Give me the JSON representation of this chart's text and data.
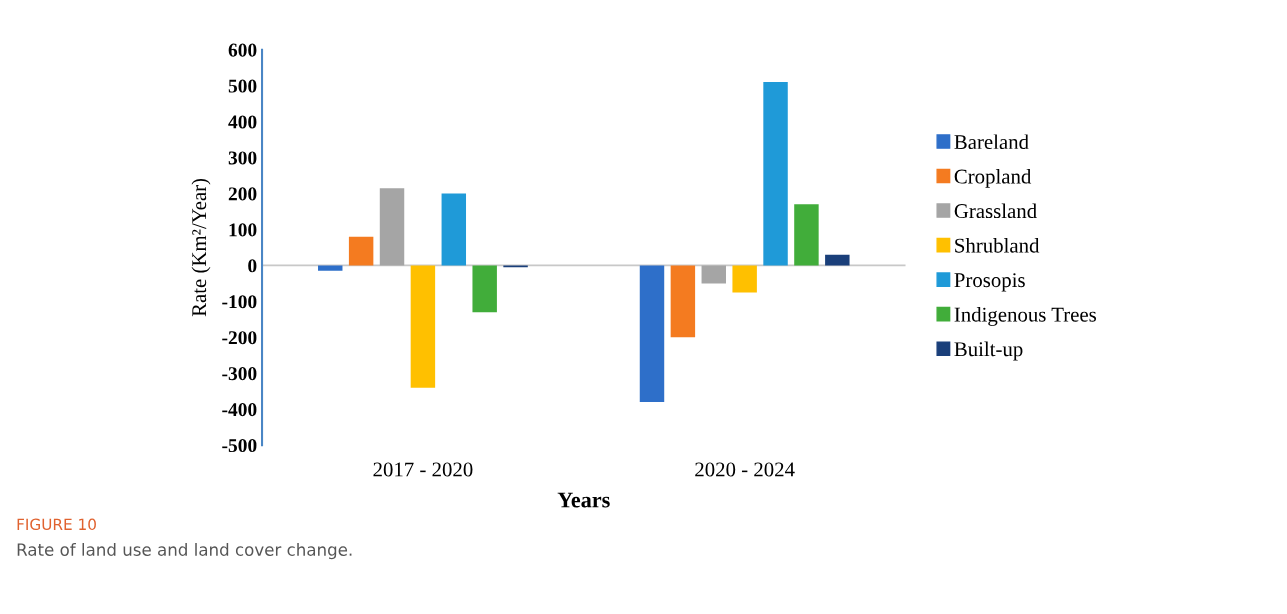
{
  "chart_data": {
    "type": "bar",
    "xlabel": "Years",
    "ylabel": "Rate (Km²/Year)",
    "categories": [
      "2017 - 2020",
      "2020 - 2024"
    ],
    "series": [
      {
        "name": "Bareland",
        "color": "#2e6fc9",
        "values": [
          -15,
          -380
        ]
      },
      {
        "name": "Cropland",
        "color": "#f47b20",
        "values": [
          80,
          -200
        ]
      },
      {
        "name": "Grassland",
        "color": "#a5a5a5",
        "values": [
          215,
          -50
        ]
      },
      {
        "name": "Shrubland",
        "color": "#ffc000",
        "values": [
          -340,
          -75
        ]
      },
      {
        "name": "Prosopis",
        "color": "#1f9ad8",
        "values": [
          200,
          510
        ]
      },
      {
        "name": "Indigenous Trees",
        "color": "#41ad3a",
        "values": [
          -130,
          170
        ]
      },
      {
        "name": "Built-up",
        "color": "#1a3f7a",
        "values": [
          -5,
          30
        ]
      }
    ],
    "ylim": [
      -500,
      600
    ],
    "yticks": [
      -500,
      -400,
      -300,
      -200,
      -100,
      0,
      100,
      200,
      300,
      400,
      500,
      600
    ],
    "ref_lines": [
      {
        "axis": "y",
        "value": 0,
        "color": "#c8c8c8"
      }
    ],
    "grid": false,
    "legend": "right",
    "annotations": [
      "FIGURE 10",
      "Rate of land use and land cover change."
    ]
  }
}
